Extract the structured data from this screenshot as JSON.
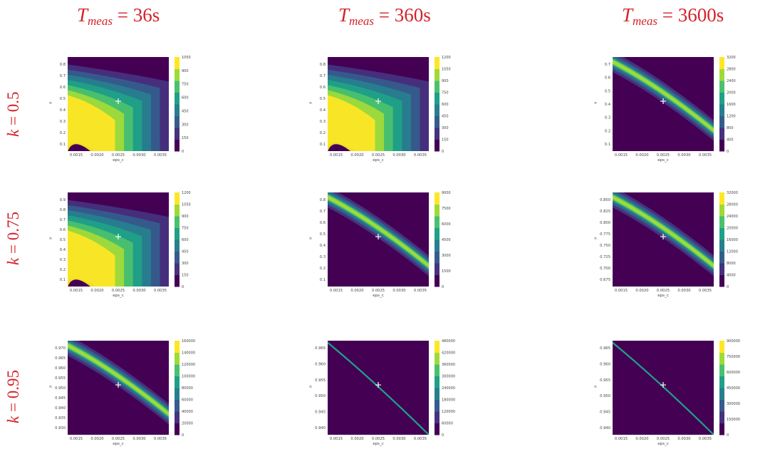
{
  "columns": [
    {
      "t_symbol": "T",
      "t_sub": "meas",
      "value": "36s"
    },
    {
      "t_symbol": "T",
      "t_sub": "meas",
      "value": "360s"
    },
    {
      "t_symbol": "T",
      "t_sub": "meas",
      "value": "3600s"
    }
  ],
  "rows": [
    {
      "k_symbol": "k",
      "value": "0.5"
    },
    {
      "k_symbol": "k",
      "value": "0.75"
    },
    {
      "k_symbol": "k",
      "value": "0.95"
    }
  ],
  "chart_data": [
    {
      "id": "r0c0",
      "type": "heatmap",
      "xlabel": "eps_c",
      "ylabel": "n",
      "xticks": [
        "0.0015",
        "0.0020",
        "0.0025",
        "0.0030",
        "0.0035"
      ],
      "yticks": [
        "0.1",
        "0.2",
        "0.3",
        "0.4",
        "0.5",
        "0.6",
        "0.7",
        "0.8"
      ],
      "colorbar_ticks": [
        "0",
        "150",
        "300",
        "450",
        "600",
        "750",
        "900",
        "1050"
      ],
      "marker": {
        "x": 0.0025,
        "y": 0.5
      },
      "pattern": "fan"
    },
    {
      "id": "r0c1",
      "type": "heatmap",
      "xlabel": "eps_c",
      "ylabel": "n",
      "xticks": [
        "0.0015",
        "0.0020",
        "0.0025",
        "0.0030",
        "0.0035"
      ],
      "yticks": [
        "0.1",
        "0.2",
        "0.3",
        "0.4",
        "0.5",
        "0.6",
        "0.7",
        "0.8"
      ],
      "colorbar_ticks": [
        "0",
        "150",
        "300",
        "450",
        "600",
        "750",
        "900",
        "1050",
        "1200"
      ],
      "marker": {
        "x": 0.0025,
        "y": 0.5
      },
      "pattern": "fan"
    },
    {
      "id": "r0c2",
      "type": "heatmap",
      "xlabel": "eps_c",
      "ylabel": "n",
      "xticks": [
        "0.0015",
        "0.0020",
        "0.0025",
        "0.0030",
        "0.0035"
      ],
      "yticks": [
        "0.1",
        "0.2",
        "0.3",
        "0.4",
        "0.5",
        "0.6",
        "0.7"
      ],
      "colorbar_ticks": [
        "0",
        "400",
        "800",
        "1200",
        "1600",
        "2000",
        "2400",
        "2800",
        "3200"
      ],
      "marker": {
        "x": 0.0025,
        "y": 0.5
      },
      "pattern": "band"
    },
    {
      "id": "r1c0",
      "type": "heatmap",
      "xlabel": "eps_c",
      "ylabel": "n",
      "xticks": [
        "0.0015",
        "0.0020",
        "0.0025",
        "0.0030",
        "0.0035"
      ],
      "yticks": [
        "0.1",
        "0.2",
        "0.3",
        "0.4",
        "0.5",
        "0.6",
        "0.7",
        "0.8",
        "0.9"
      ],
      "colorbar_ticks": [
        "0",
        "150",
        "300",
        "450",
        "600",
        "750",
        "900",
        "1050",
        "1200"
      ],
      "marker": {
        "x": 0.0025,
        "y": 0.75
      },
      "pattern": "fan"
    },
    {
      "id": "r1c1",
      "type": "heatmap",
      "xlabel": "eps_c",
      "ylabel": "n",
      "xticks": [
        "0.0015",
        "0.0020",
        "0.0025",
        "0.0030",
        "0.0035"
      ],
      "yticks": [
        "0.1",
        "0.2",
        "0.3",
        "0.4",
        "0.5",
        "0.6",
        "0.7",
        "0.8"
      ],
      "colorbar_ticks": [
        "0",
        "1500",
        "3000",
        "4500",
        "6000",
        "7500",
        "9000"
      ],
      "marker": {
        "x": 0.0025,
        "y": 0.75
      },
      "pattern": "band"
    },
    {
      "id": "r1c2",
      "type": "heatmap",
      "xlabel": "eps_c",
      "ylabel": "n",
      "xticks": [
        "0.0015",
        "0.0020",
        "0.0025",
        "0.0030",
        "0.0035"
      ],
      "yticks": [
        "0.675",
        "0.700",
        "0.725",
        "0.750",
        "0.775",
        "0.800",
        "0.825",
        "0.850"
      ],
      "colorbar_ticks": [
        "0",
        "4000",
        "8000",
        "12000",
        "16000",
        "20000",
        "24000",
        "28000",
        "32000"
      ],
      "marker": {
        "x": 0.0025,
        "y": 0.75
      },
      "pattern": "band"
    },
    {
      "id": "r2c0",
      "type": "heatmap",
      "xlabel": "eps_c",
      "ylabel": "n",
      "xticks": [
        "0.0015",
        "0.0020",
        "0.0025",
        "0.0030",
        "0.0035"
      ],
      "yticks": [
        "0.930",
        "0.935",
        "0.940",
        "0.945",
        "0.950",
        "0.955",
        "0.960",
        "0.965",
        "0.970"
      ],
      "colorbar_ticks": [
        "0",
        "20000",
        "40000",
        "60000",
        "80000",
        "100000",
        "120000",
        "140000",
        "160000"
      ],
      "marker": {
        "x": 0.0025,
        "y": 0.95
      },
      "pattern": "band"
    },
    {
      "id": "r2c1",
      "type": "heatmap",
      "xlabel": "eps_c",
      "ylabel": "n",
      "xticks": [
        "0.0015",
        "0.0020",
        "0.0025",
        "0.0030",
        "0.0035"
      ],
      "yticks": [
        "0.940",
        "0.945",
        "0.950",
        "0.955",
        "0.960",
        "0.965"
      ],
      "colorbar_ticks": [
        "0",
        "60000",
        "120000",
        "180000",
        "240000",
        "300000",
        "360000",
        "420000",
        "480000"
      ],
      "marker": {
        "x": 0.0025,
        "y": 0.95
      },
      "pattern": "line"
    },
    {
      "id": "r2c2",
      "type": "heatmap",
      "xlabel": "eps_c",
      "ylabel": "n",
      "xticks": [
        "0.0015",
        "0.0020",
        "0.0025",
        "0.0030",
        "0.0035"
      ],
      "yticks": [
        "0.940",
        "0.945",
        "0.950",
        "0.955",
        "0.960",
        "0.965"
      ],
      "colorbar_ticks": [
        "0",
        "150000",
        "300000",
        "450000",
        "600000",
        "750000",
        "900000"
      ],
      "marker": {
        "x": 0.0025,
        "y": 0.95
      },
      "pattern": "line"
    }
  ],
  "colors": {
    "viridis": [
      "#440154",
      "#46327e",
      "#365c8d",
      "#277f8e",
      "#1fa187",
      "#4ac16d",
      "#a0da39",
      "#fde725"
    ],
    "marker": "#ffffff",
    "title": "#d4232b"
  }
}
